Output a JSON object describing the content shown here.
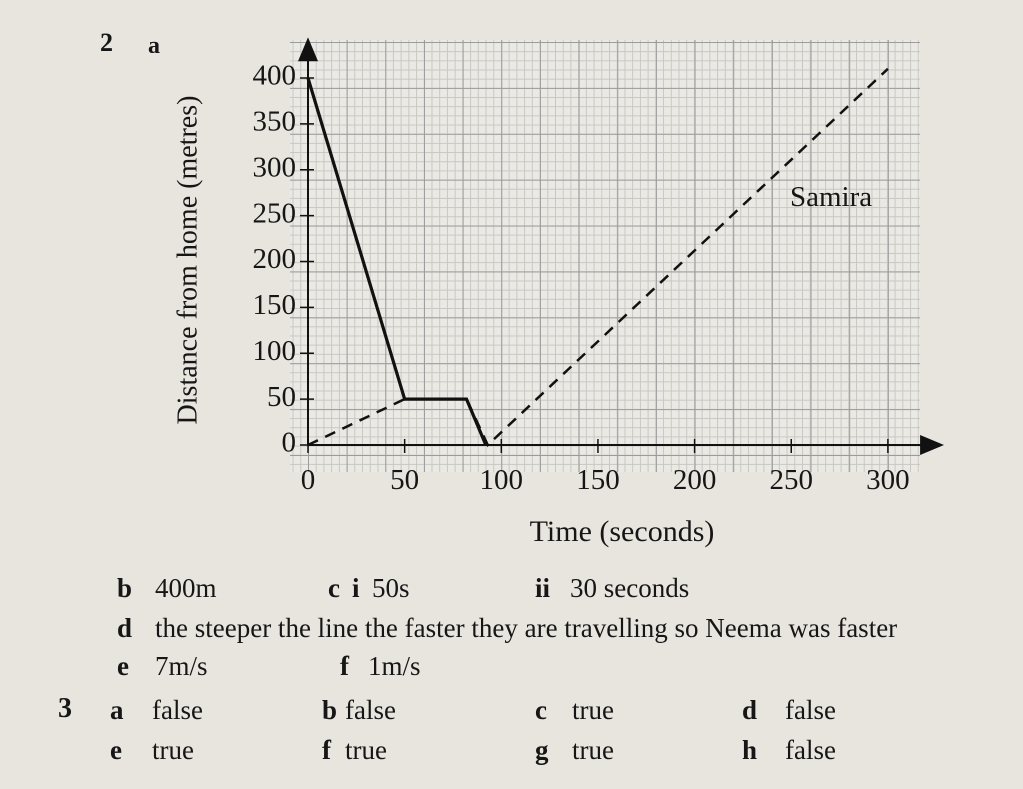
{
  "question": {
    "number": "2",
    "part": "a"
  },
  "chart_data": {
    "type": "line",
    "xlabel": "Time (seconds)",
    "ylabel": "Distance from home (metres)",
    "xlim": [
      0,
      327
    ],
    "ylim": [
      0,
      440
    ],
    "xticks": [
      0,
      50,
      100,
      150,
      200,
      250,
      300
    ],
    "yticks": [
      0,
      50,
      100,
      150,
      200,
      250,
      300,
      350,
      400
    ],
    "series": [
      {
        "color": "#111111",
        "style": "solid",
        "x": [
          0,
          50,
          82,
          92
        ],
        "values": [
          400,
          50,
          50,
          0
        ]
      },
      {
        "name": "Samira",
        "color": "#111111",
        "style": "dashed",
        "x": [
          0,
          50,
          82,
          93,
          300
        ],
        "values": [
          0,
          50,
          50,
          0,
          410
        ]
      }
    ]
  },
  "answers": {
    "q2": [
      {
        "label": "b",
        "text": "400m"
      },
      {
        "label": "c",
        "parts": [
          {
            "label": "i",
            "text": "50s"
          },
          {
            "label": "ii",
            "text": "30 seconds"
          }
        ]
      },
      {
        "label": "d",
        "text": "the steeper the line the faster they are travelling so Neema was faster"
      },
      {
        "label": "e",
        "text": "7m/s"
      },
      {
        "label": "f",
        "text": "1m/s"
      }
    ],
    "q3": {
      "number": "3",
      "items": [
        {
          "label": "a",
          "text": "false"
        },
        {
          "label": "b",
          "text": "false"
        },
        {
          "label": "c",
          "text": "true"
        },
        {
          "label": "d",
          "text": "false"
        },
        {
          "label": "e",
          "text": "true"
        },
        {
          "label": "f",
          "text": "true"
        },
        {
          "label": "g",
          "text": "true"
        },
        {
          "label": "h",
          "text": "false"
        }
      ]
    }
  }
}
